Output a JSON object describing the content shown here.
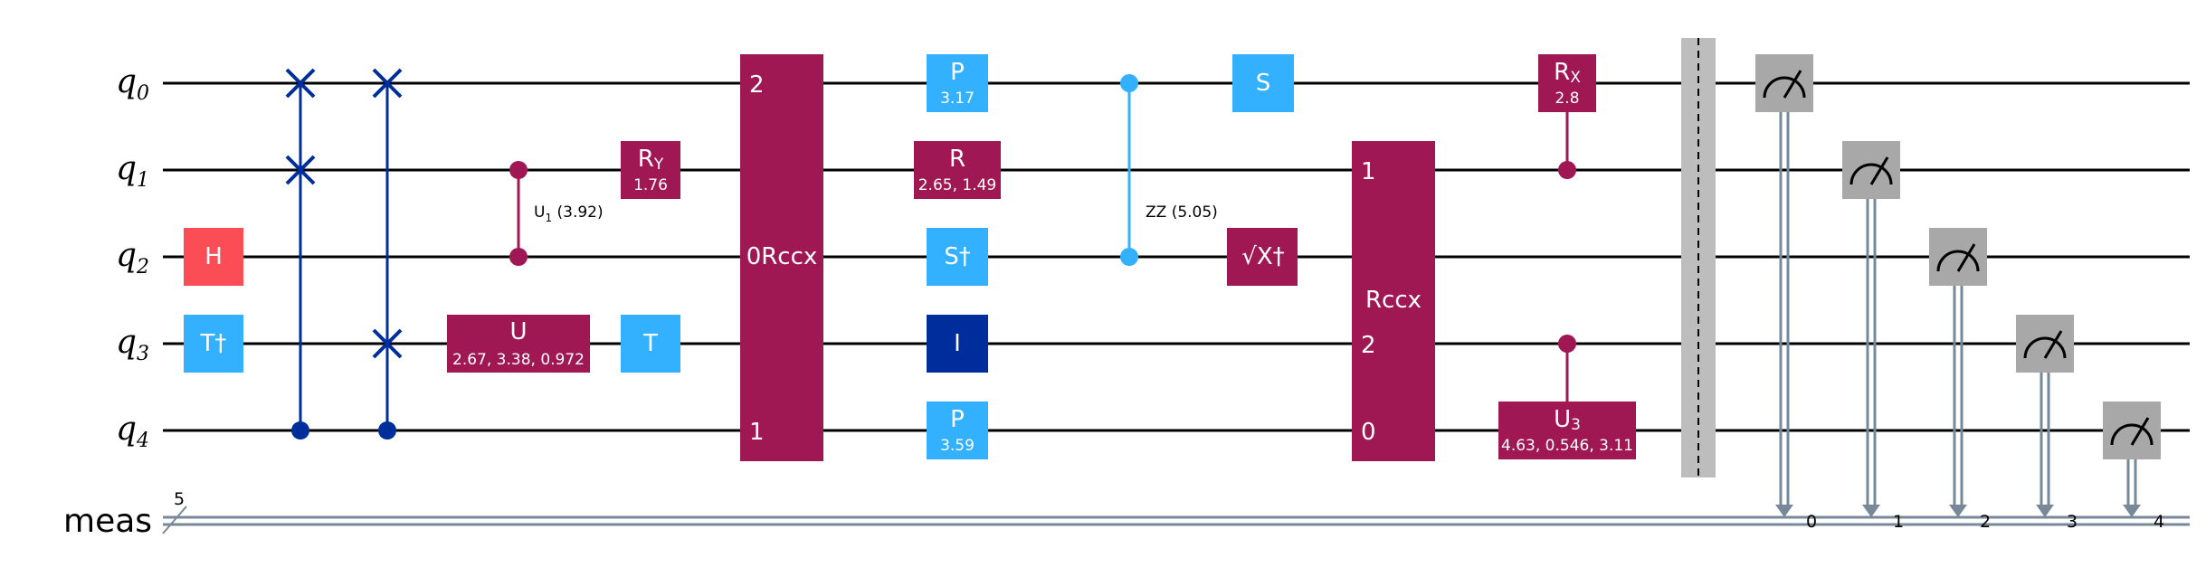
{
  "qubits": [
    {
      "name": "q",
      "index": "0"
    },
    {
      "name": "q",
      "index": "1"
    },
    {
      "name": "q",
      "index": "2"
    },
    {
      "name": "q",
      "index": "3"
    },
    {
      "name": "q",
      "index": "4"
    }
  ],
  "classical_register": {
    "label": "meas",
    "width": "5",
    "bits": [
      "0",
      "1",
      "2",
      "3",
      "4"
    ]
  },
  "colors": {
    "hadamard": "#FA4D56",
    "clifford": "#33B1FF",
    "generic": "#9F1853",
    "swap": "#002D9C",
    "identity": "#002D9C",
    "measure": "#A8A8A8",
    "barrier": "#BDBDBD",
    "classical_wire": "#778899"
  },
  "gates": {
    "h": {
      "label": "H"
    },
    "tdg": {
      "label": "T†"
    },
    "cu1": {
      "label": "U",
      "sub": "1",
      "param": "(3.92)"
    },
    "ry": {
      "label": "R",
      "sub": "Y",
      "param": "1.76"
    },
    "u": {
      "label": "U",
      "param": "2.67, 3.38, 0.972"
    },
    "t": {
      "label": "T"
    },
    "rccx_a": {
      "label": "0Rccx",
      "ports": [
        "2",
        "1"
      ]
    },
    "p0": {
      "label": "P",
      "param": "3.17"
    },
    "r": {
      "label": "R",
      "param": "2.65, 1.49"
    },
    "sdg": {
      "label": "S†"
    },
    "id": {
      "label": "I"
    },
    "p4": {
      "label": "P",
      "param": "3.59"
    },
    "rzz": {
      "label": "ZZ (5.05)"
    },
    "s": {
      "label": "S"
    },
    "sxdg": {
      "label": "√X†",
      "dagger": "†"
    },
    "rccx_b": {
      "label": "Rccx",
      "ports": [
        "1",
        "2",
        "0"
      ]
    },
    "crx": {
      "label": "R",
      "sub": "X",
      "param": "2.8"
    },
    "cu3": {
      "label": "U",
      "sub": "3",
      "param": "4.63, 0.546, 3.11"
    }
  }
}
